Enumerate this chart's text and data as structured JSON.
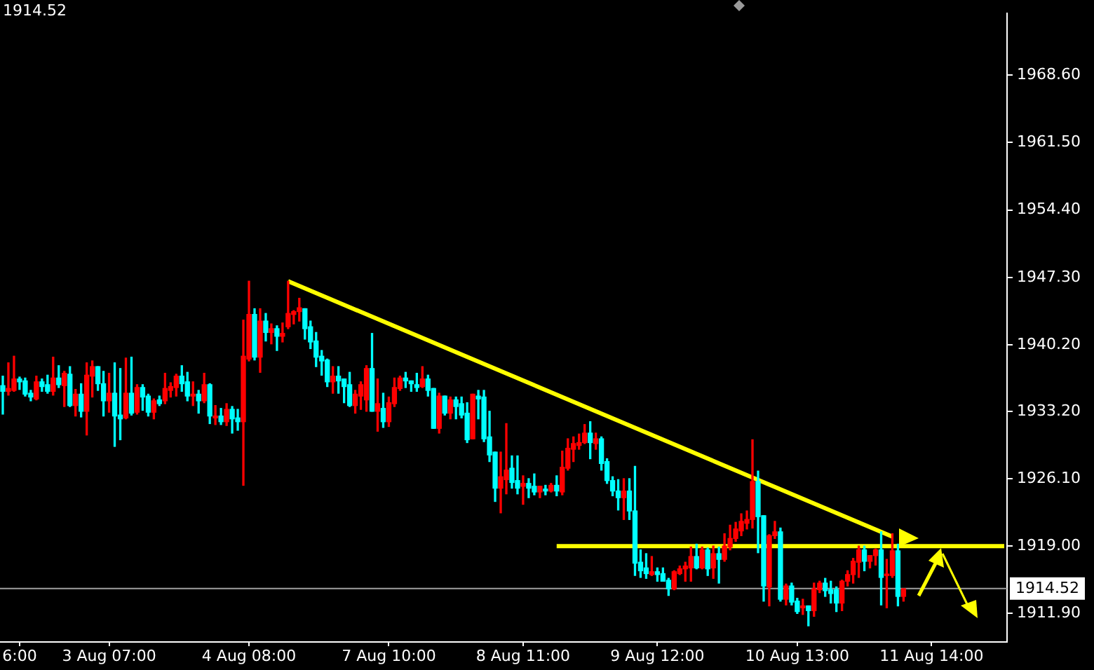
{
  "chart_data": {
    "type": "candlestick",
    "categories": [
      null,
      null,
      null,
      "6:00",
      null,
      null,
      null,
      null,
      null,
      null,
      null,
      null,
      null,
      null,
      null,
      null,
      null,
      null,
      null,
      "3 Aug 07:00",
      null,
      null,
      null,
      null,
      null,
      null,
      null,
      null,
      null,
      null,
      null,
      null,
      null,
      null,
      null,
      null,
      null,
      null,
      null,
      null,
      null,
      null,
      null,
      null,
      "4 Aug 08:00",
      null,
      null,
      null,
      null,
      null,
      null,
      null,
      null,
      null,
      null,
      null,
      null,
      null,
      null,
      null,
      null,
      null,
      null,
      null,
      null,
      null,
      null,
      null,
      null,
      "7 Aug 10:00",
      null,
      null,
      null,
      null,
      null,
      null,
      null,
      null,
      null,
      null,
      null,
      null,
      null,
      null,
      null,
      null,
      null,
      null,
      null,
      null,
      null,
      null,
      null,
      "8 Aug 11:00",
      null,
      null,
      null,
      null,
      null,
      null,
      null,
      null,
      null,
      null,
      null,
      null,
      null,
      null,
      null,
      null,
      null,
      null,
      null,
      null,
      null,
      null,
      null,
      "9 Aug 12:00",
      null,
      null,
      null,
      null,
      null,
      null,
      null,
      null,
      null,
      null,
      null,
      null,
      null,
      null,
      null,
      null,
      null,
      null,
      null,
      null,
      null,
      null,
      null,
      null,
      "10 Aug 13:00",
      null,
      null,
      null,
      null,
      null,
      null,
      null,
      null,
      null,
      null,
      null,
      null,
      null,
      null,
      null,
      null,
      null,
      null,
      null,
      null,
      null,
      null,
      null,
      "11 Aug 14:00",
      null,
      null,
      null,
      null,
      null,
      null,
      null,
      null,
      null,
      null,
      null,
      null,
      null
    ],
    "ohlc": [
      [
        1935.9,
        1936.9,
        1932.9,
        1935.3
      ],
      [
        1935.3,
        1938.3,
        1934.9,
        1935.6
      ],
      [
        1935.4,
        1939.0,
        1935.3,
        1936.6
      ],
      [
        1936.6,
        1936.8,
        1935.5,
        1936.3
      ],
      [
        1936.4,
        1936.7,
        1934.8,
        1935.0
      ],
      [
        1935.1,
        1935.4,
        1934.3,
        1934.7
      ],
      [
        1934.5,
        1936.9,
        1934.4,
        1936.3
      ],
      [
        1936.3,
        1936.6,
        1935.3,
        1935.8
      ],
      [
        1936.0,
        1937.0,
        1935.1,
        1935.3
      ],
      [
        1935.3,
        1938.9,
        1934.9,
        1936.7
      ],
      [
        1936.7,
        1938.0,
        1935.7,
        1936.0
      ],
      [
        1935.9,
        1937.4,
        1933.7,
        1937.2
      ],
      [
        1937.1,
        1937.9,
        1933.7,
        1933.8
      ],
      [
        1933.8,
        1935.5,
        1932.7,
        1935.0
      ],
      [
        1935.0,
        1936.1,
        1932.6,
        1933.2
      ],
      [
        1933.2,
        1938.3,
        1930.7,
        1937.0
      ],
      [
        1936.9,
        1938.5,
        1934.7,
        1937.9
      ],
      [
        1937.9,
        1937.9,
        1935.4,
        1936.1
      ],
      [
        1936.1,
        1937.4,
        1932.7,
        1934.3
      ],
      [
        1934.3,
        1937.2,
        1933.1,
        1935.1
      ],
      [
        1935.1,
        1938.3,
        1929.5,
        1932.7
      ],
      [
        1932.8,
        1937.7,
        1930.2,
        1932.4
      ],
      [
        1932.5,
        1938.8,
        1932.4,
        1935.1
      ],
      [
        1935.1,
        1938.9,
        1932.8,
        1933.0
      ],
      [
        1933.1,
        1936.0,
        1932.9,
        1935.7
      ],
      [
        1935.7,
        1936.0,
        1933.3,
        1934.7
      ],
      [
        1934.8,
        1935.0,
        1932.7,
        1933.1
      ],
      [
        1933.1,
        1934.5,
        1932.4,
        1934.3
      ],
      [
        1934.4,
        1934.8,
        1933.8,
        1934.0
      ],
      [
        1934.3,
        1937.2,
        1934.0,
        1935.6
      ],
      [
        1935.4,
        1936.2,
        1934.7,
        1935.8
      ],
      [
        1935.7,
        1937.1,
        1934.8,
        1936.9
      ],
      [
        1936.9,
        1938.0,
        1935.3,
        1936.1
      ],
      [
        1936.3,
        1937.3,
        1934.3,
        1934.8
      ],
      [
        1934.8,
        1936.3,
        1933.8,
        1935.0
      ],
      [
        1935.0,
        1935.4,
        1933.0,
        1934.3
      ],
      [
        1934.3,
        1937.2,
        1934.1,
        1936.0
      ],
      [
        1936.0,
        1936.1,
        1931.9,
        1932.7
      ],
      [
        1932.5,
        1933.8,
        1931.8,
        1932.7
      ],
      [
        1932.7,
        1933.5,
        1931.8,
        1932.1
      ],
      [
        1932.1,
        1934.0,
        1931.7,
        1933.4
      ],
      [
        1933.4,
        1933.7,
        1930.9,
        1932.4
      ],
      [
        1932.5,
        1933.4,
        1931.2,
        1932.1
      ],
      [
        1932.1,
        1942.8,
        1925.4,
        1939.0
      ],
      [
        1938.7,
        1946.9,
        1938.5,
        1943.4
      ],
      [
        1943.4,
        1944.0,
        1938.6,
        1938.9
      ],
      [
        1938.9,
        1944.0,
        1937.3,
        1942.7
      ],
      [
        1942.7,
        1943.5,
        1940.6,
        1941.5
      ],
      [
        1941.5,
        1942.4,
        1940.3,
        1941.9
      ],
      [
        1941.9,
        1942.2,
        1939.6,
        1941.1
      ],
      [
        1941.1,
        1942.5,
        1940.5,
        1941.4
      ],
      [
        1942.1,
        1946.9,
        1941.9,
        1943.5
      ],
      [
        1943.4,
        1943.8,
        1942.4,
        1943.7
      ],
      [
        1943.7,
        1945.1,
        1942.7,
        1944.1
      ],
      [
        1944.0,
        1944.0,
        1940.8,
        1941.9
      ],
      [
        1942.1,
        1942.7,
        1939.8,
        1940.5
      ],
      [
        1940.6,
        1941.5,
        1937.9,
        1938.9
      ],
      [
        1939.0,
        1939.6,
        1937.0,
        1938.5
      ],
      [
        1938.6,
        1938.7,
        1935.8,
        1936.3
      ],
      [
        1936.3,
        1937.9,
        1935.1,
        1936.9
      ],
      [
        1936.9,
        1937.9,
        1935.1,
        1936.4
      ],
      [
        1936.6,
        1936.6,
        1934.1,
        1935.8
      ],
      [
        1936.0,
        1937.3,
        1933.7,
        1933.8
      ],
      [
        1933.8,
        1935.4,
        1933.0,
        1935.0
      ],
      [
        1934.8,
        1936.3,
        1933.4,
        1936.0
      ],
      [
        1934.4,
        1938.0,
        1933.2,
        1937.7
      ],
      [
        1937.7,
        1941.4,
        1933.2,
        1933.2
      ],
      [
        1933.2,
        1936.6,
        1931.1,
        1934.0
      ],
      [
        1933.5,
        1935.1,
        1931.5,
        1932.1
      ],
      [
        1932.1,
        1934.7,
        1931.6,
        1934.1
      ],
      [
        1934.0,
        1936.7,
        1933.7,
        1935.7
      ],
      [
        1935.6,
        1936.9,
        1935.4,
        1936.7
      ],
      [
        1936.7,
        1937.3,
        1935.7,
        1936.4
      ],
      [
        1936.4,
        1936.4,
        1935.3,
        1936.1
      ],
      [
        1936.0,
        1937.2,
        1935.3,
        1935.7
      ],
      [
        1935.8,
        1937.9,
        1935.7,
        1936.6
      ],
      [
        1936.6,
        1937.0,
        1934.8,
        1935.4
      ],
      [
        1935.6,
        1935.6,
        1931.4,
        1931.4
      ],
      [
        1931.4,
        1935.1,
        1930.9,
        1934.8
      ],
      [
        1934.8,
        1934.8,
        1932.8,
        1933.0
      ],
      [
        1933.0,
        1934.7,
        1932.4,
        1934.4
      ],
      [
        1934.4,
        1934.7,
        1932.4,
        1933.7
      ],
      [
        1934.0,
        1934.7,
        1932.5,
        1932.8
      ],
      [
        1933.0,
        1934.1,
        1929.9,
        1930.2
      ],
      [
        1930.3,
        1935.0,
        1930.3,
        1935.0
      ],
      [
        1934.8,
        1935.4,
        1932.4,
        1934.5
      ],
      [
        1934.7,
        1935.4,
        1930.0,
        1930.3
      ],
      [
        1930.5,
        1933.2,
        1927.9,
        1928.6
      ],
      [
        1928.9,
        1928.9,
        1923.7,
        1925.1
      ],
      [
        1925.1,
        1928.9,
        1922.5,
        1926.3
      ],
      [
        1926.0,
        1931.9,
        1924.5,
        1927.0
      ],
      [
        1927.2,
        1928.5,
        1925.1,
        1925.7
      ],
      [
        1925.9,
        1928.5,
        1924.5,
        1925.1
      ],
      [
        1925.3,
        1926.4,
        1923.4,
        1925.6
      ],
      [
        1925.6,
        1926.1,
        1924.1,
        1925.1
      ],
      [
        1925.3,
        1926.6,
        1924.4,
        1924.7
      ],
      [
        1924.7,
        1925.3,
        1924.1,
        1925.3
      ],
      [
        1925.0,
        1925.4,
        1924.4,
        1924.8
      ],
      [
        1924.8,
        1925.6,
        1924.7,
        1925.4
      ],
      [
        1925.4,
        1926.4,
        1924.3,
        1924.8
      ],
      [
        1924.7,
        1929.0,
        1924.4,
        1927.3
      ],
      [
        1927.2,
        1930.3,
        1927.0,
        1929.3
      ],
      [
        1929.2,
        1930.5,
        1927.9,
        1929.8
      ],
      [
        1929.6,
        1930.8,
        1929.2,
        1929.9
      ],
      [
        1929.9,
        1931.8,
        1929.8,
        1930.9
      ],
      [
        1930.9,
        1932.1,
        1928.2,
        1929.9
      ],
      [
        1929.8,
        1930.9,
        1929.2,
        1930.3
      ],
      [
        1930.3,
        1930.5,
        1927.0,
        1927.7
      ],
      [
        1927.9,
        1928.2,
        1925.6,
        1925.9
      ],
      [
        1925.9,
        1926.3,
        1924.3,
        1924.8
      ],
      [
        1924.8,
        1926.0,
        1922.8,
        1924.1
      ],
      [
        1924.1,
        1926.1,
        1921.8,
        1924.8
      ],
      [
        1924.8,
        1926.1,
        1921.8,
        1922.7
      ],
      [
        1922.7,
        1927.4,
        1915.9,
        1917.2
      ],
      [
        1917.3,
        1918.6,
        1915.7,
        1916.4
      ],
      [
        1916.7,
        1918.2,
        1915.6,
        1916.1
      ],
      [
        1916.0,
        1917.9,
        1915.9,
        1916.3
      ],
      [
        1916.3,
        1916.7,
        1915.3,
        1916.0
      ],
      [
        1916.1,
        1916.7,
        1915.3,
        1915.3
      ],
      [
        1915.4,
        1915.6,
        1913.8,
        1914.5
      ],
      [
        1914.5,
        1916.4,
        1914.4,
        1916.3
      ],
      [
        1916.1,
        1916.9,
        1916.0,
        1916.6
      ],
      [
        1916.6,
        1917.3,
        1915.3,
        1916.9
      ],
      [
        1916.7,
        1918.9,
        1915.3,
        1917.9
      ],
      [
        1917.9,
        1919.2,
        1916.6,
        1916.7
      ],
      [
        1916.7,
        1918.9,
        1916.6,
        1918.6
      ],
      [
        1918.6,
        1918.8,
        1915.9,
        1916.6
      ],
      [
        1916.7,
        1919.0,
        1915.6,
        1918.2
      ],
      [
        1918.2,
        1918.9,
        1915.1,
        1917.6
      ],
      [
        1917.6,
        1920.3,
        1917.4,
        1919.0
      ],
      [
        1918.9,
        1921.2,
        1918.6,
        1919.8
      ],
      [
        1919.8,
        1921.5,
        1919.5,
        1920.8
      ],
      [
        1920.6,
        1922.4,
        1920.1,
        1921.6
      ],
      [
        1921.4,
        1922.7,
        1920.8,
        1921.8
      ],
      [
        1921.8,
        1930.2,
        1920.9,
        1925.8
      ],
      [
        1925.8,
        1926.9,
        1918.3,
        1922.1
      ],
      [
        1922.2,
        1922.2,
        1913.2,
        1914.8
      ],
      [
        1914.7,
        1920.2,
        1912.7,
        1920.1
      ],
      [
        1920.1,
        1921.6,
        1919.8,
        1920.5
      ],
      [
        1920.5,
        1920.9,
        1913.2,
        1913.4
      ],
      [
        1913.4,
        1915.0,
        1912.8,
        1914.8
      ],
      [
        1914.8,
        1915.1,
        1912.8,
        1913.1
      ],
      [
        1913.2,
        1913.5,
        1911.9,
        1912.1
      ],
      [
        1912.5,
        1913.4,
        1911.8,
        1912.7
      ],
      [
        1912.7,
        1912.7,
        1910.6,
        1912.2
      ],
      [
        1912.2,
        1915.1,
        1911.6,
        1914.5
      ],
      [
        1914.4,
        1915.3,
        1914.1,
        1915.1
      ],
      [
        1915.1,
        1915.6,
        1913.7,
        1914.3
      ],
      [
        1914.4,
        1915.3,
        1913.0,
        1914.0
      ],
      [
        1914.4,
        1914.7,
        1912.1,
        1913.0
      ],
      [
        1913.0,
        1915.4,
        1912.2,
        1915.3
      ],
      [
        1915.3,
        1916.4,
        1914.8,
        1916.0
      ],
      [
        1916.0,
        1917.7,
        1915.1,
        1917.4
      ],
      [
        1917.3,
        1919.0,
        1915.7,
        1918.6
      ],
      [
        1918.6,
        1919.0,
        1916.4,
        1917.4
      ],
      [
        1917.4,
        1918.0,
        1916.7,
        1918.0
      ],
      [
        1918.0,
        1918.7,
        1917.0,
        1918.6
      ],
      [
        1918.6,
        1920.5,
        1912.8,
        1915.7
      ],
      [
        1915.9,
        1917.6,
        1912.5,
        1916.0
      ],
      [
        1915.9,
        1920.3,
        1915.7,
        1918.5
      ],
      [
        1918.5,
        1919.2,
        1912.7,
        1913.7
      ],
      [
        1913.7,
        1914.5,
        1913.2,
        1914.5
      ],
      null,
      null,
      null,
      null,
      null,
      null,
      null,
      null,
      null,
      null,
      null,
      null,
      null,
      null,
      null,
      null,
      null,
      null
    ],
    "colors": [
      "#00ffff",
      "#ff0000",
      "#ff0000",
      "#00ffff",
      "#00ffff",
      "#00ffff",
      "#ff0000",
      "#00ffff",
      "#00ffff",
      "#ff0000",
      "#00ffff",
      "#ff0000",
      "#00ffff",
      "#ff0000",
      "#00ffff",
      "#ff0000",
      "#ff0000",
      "#00ffff",
      "#00ffff",
      "#ff0000",
      "#00ffff",
      "#00ffff",
      "#ff0000",
      "#00ffff",
      "#ff0000",
      "#00ffff",
      "#00ffff",
      "#ff0000",
      "#00ffff",
      "#ff0000",
      "#ff0000",
      "#ff0000",
      "#00ffff",
      "#00ffff",
      "#ff0000",
      "#00ffff",
      "#ff0000",
      "#00ffff",
      "#ff0000",
      "#00ffff",
      "#ff0000",
      "#00ffff",
      "#00ffff",
      "#ff0000",
      "#ff0000",
      "#00ffff",
      "#ff0000",
      "#00ffff",
      "#ff0000",
      "#00ffff",
      "#ff0000",
      "#ff0000",
      "#ff0000",
      "#ff0000",
      "#00ffff",
      "#00ffff",
      "#00ffff",
      "#00ffff",
      "#00ffff",
      "#ff0000",
      "#00ffff",
      "#00ffff",
      "#00ffff",
      "#ff0000",
      "#ff0000",
      "#ff0000",
      "#00ffff",
      "#ff0000",
      "#00ffff",
      "#ff0000",
      "#ff0000",
      "#ff0000",
      "#00ffff",
      "#00ffff",
      "#00ffff",
      "#ff0000",
      "#00ffff",
      "#00ffff",
      "#ff0000",
      "#00ffff",
      "#ff0000",
      "#00ffff",
      "#00ffff",
      "#00ffff",
      "#ff0000",
      "#00ffff",
      "#00ffff",
      "#00ffff",
      "#00ffff",
      "#ff0000",
      "#ff0000",
      "#00ffff",
      "#00ffff",
      "#ff0000",
      "#00ffff",
      "#00ffff",
      "#ff0000",
      "#00ffff",
      "#ff0000",
      "#00ffff",
      "#ff0000",
      "#ff0000",
      "#ff0000",
      "#ff0000",
      "#ff0000",
      "#00ffff",
      "#ff0000",
      "#00ffff",
      "#00ffff",
      "#00ffff",
      "#00ffff",
      "#ff0000",
      "#00ffff",
      "#00ffff",
      "#00ffff",
      "#00ffff",
      "#ff0000",
      "#00ffff",
      "#00ffff",
      "#00ffff",
      "#ff0000",
      "#ff0000",
      "#ff0000",
      "#ff0000",
      "#00ffff",
      "#ff0000",
      "#00ffff",
      "#ff0000",
      "#00ffff",
      "#ff0000",
      "#ff0000",
      "#ff0000",
      "#ff0000",
      "#ff0000",
      "#ff0000",
      "#00ffff",
      "#00ffff",
      "#ff0000",
      "#ff0000",
      "#00ffff",
      "#ff0000",
      "#00ffff",
      "#00ffff",
      "#ff0000",
      "#00ffff",
      "#ff0000",
      "#ff0000",
      "#00ffff",
      "#00ffff",
      "#00ffff",
      "#ff0000",
      "#ff0000",
      "#ff0000",
      "#ff0000",
      "#00ffff",
      "#ff0000",
      "#ff0000",
      "#00ffff",
      "#ff0000",
      "#ff0000",
      "#00ffff",
      "#ff0000",
      null,
      null,
      null,
      null,
      null,
      null,
      null,
      null,
      null,
      null,
      null,
      null,
      null,
      null,
      null,
      null,
      null,
      null
    ],
    "series": [
      {
        "type": "line",
        "color": "#ffff00",
        "values": [
          null,
          null,
          null,
          null,
          null,
          null,
          null,
          null,
          null,
          null,
          null,
          null,
          null,
          null,
          null,
          null,
          null,
          null,
          null,
          null,
          null,
          null,
          null,
          null,
          null,
          null,
          null,
          null,
          null,
          null,
          null,
          null,
          null,
          null,
          null,
          null,
          null,
          null,
          null,
          null,
          null,
          null,
          null,
          null,
          null,
          null,
          null,
          null,
          null,
          null,
          null,
          1946.9,
          null,
          null,
          null,
          null,
          null,
          null,
          null,
          null,
          null,
          null,
          null,
          null,
          null,
          null,
          null,
          null,
          null,
          null,
          null,
          null,
          null,
          null,
          null,
          null,
          null,
          null,
          null,
          null,
          null,
          null,
          null,
          null,
          null,
          null,
          null,
          null,
          null,
          null,
          null,
          null,
          null,
          null,
          null,
          null,
          null,
          null,
          null,
          null,
          null,
          null,
          null,
          null,
          null,
          null,
          null,
          null,
          null,
          null,
          null,
          null,
          null,
          null,
          null,
          null,
          null,
          null,
          null,
          null,
          null,
          null,
          null,
          null,
          null,
          null,
          null,
          null,
          null,
          null,
          null,
          null,
          null,
          null,
          null,
          null,
          null,
          null,
          null,
          null,
          null,
          null,
          null,
          null,
          null,
          null,
          null,
          null,
          null,
          null,
          null,
          null,
          null,
          null,
          null,
          null,
          null,
          null,
          null,
          1920.0,
          null,
          null,
          null,
          null,
          null,
          null,
          null,
          null,
          null,
          null,
          null,
          null,
          null,
          null,
          null,
          null,
          null,
          null,
          null,
          null
        ]
      },
      {
        "type": "line",
        "color": "#ffff00",
        "values": [
          null,
          null,
          null,
          null,
          null,
          null,
          null,
          null,
          null,
          null,
          null,
          null,
          null,
          null,
          null,
          null,
          null,
          null,
          null,
          null,
          null,
          null,
          null,
          null,
          null,
          null,
          null,
          null,
          null,
          null,
          null,
          null,
          null,
          null,
          null,
          null,
          null,
          null,
          null,
          null,
          null,
          null,
          null,
          null,
          null,
          null,
          null,
          null,
          null,
          null,
          null,
          null,
          null,
          null,
          null,
          null,
          null,
          null,
          null,
          null,
          null,
          null,
          null,
          null,
          null,
          null,
          null,
          null,
          null,
          null,
          null,
          null,
          null,
          null,
          null,
          null,
          null,
          null,
          null,
          null,
          null,
          null,
          null,
          null,
          null,
          null,
          null,
          null,
          null,
          null,
          null,
          null,
          null,
          null,
          null,
          null,
          null,
          null,
          null,
          1919.0,
          null,
          null,
          null,
          null,
          null,
          null,
          null,
          null,
          null,
          null,
          null,
          null,
          null,
          null,
          null,
          null,
          null,
          null,
          null,
          null,
          null,
          null,
          null,
          null,
          null,
          null,
          null,
          null,
          null,
          null,
          null,
          null,
          null,
          null,
          null,
          null,
          null,
          null,
          null,
          null,
          null,
          null,
          null,
          null,
          null,
          null,
          null,
          null,
          null,
          null,
          null,
          null,
          null,
          null,
          null,
          null,
          null,
          null,
          null,
          null,
          null,
          null,
          null,
          null,
          null,
          null,
          null,
          null,
          null,
          null,
          null,
          null,
          null,
          null,
          null,
          null,
          null,
          null,
          null,
          1919.0
        ]
      }
    ],
    "ylim": [
      1908.9,
      1975.1
    ],
    "yticks": [
      {
        "value": 1911.9,
        "label": "1911.90"
      },
      {
        "value": 1919.0,
        "label": "1919.00"
      },
      {
        "value": 1926.1,
        "label": "1926.10"
      },
      {
        "value": 1933.2,
        "label": "1933.20"
      },
      {
        "value": 1940.2,
        "label": "1940.20"
      },
      {
        "value": 1947.3,
        "label": "1947.30"
      },
      {
        "value": 1954.4,
        "label": "1954.40"
      },
      {
        "value": 1961.5,
        "label": "1961.50"
      },
      {
        "value": 1968.6,
        "label": "1968.60"
      }
    ],
    "ref_lines": [
      {
        "axis": "y",
        "value": 1914.52,
        "label": "1914.52",
        "color": "#a0a0a0"
      }
    ],
    "annotations": [
      "1914.52"
    ]
  }
}
